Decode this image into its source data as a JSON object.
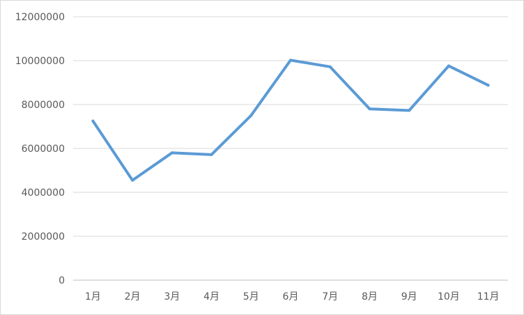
{
  "chart_data": {
    "type": "line",
    "title": "",
    "xlabel": "",
    "ylabel": "",
    "categories": [
      "1月",
      "2月",
      "3月",
      "4月",
      "5月",
      "6月",
      "7月",
      "8月",
      "9月",
      "10月",
      "11月"
    ],
    "series": [
      {
        "values": [
          7250000,
          4550000,
          5800000,
          5720000,
          7500000,
          10020000,
          9720000,
          7800000,
          7730000,
          9760000,
          8880000
        ],
        "color": "#5b9bd5"
      }
    ],
    "ylim": [
      0,
      12000000
    ],
    "yticks": [
      "0",
      "2000000",
      "4000000",
      "6000000",
      "8000000",
      "10000000",
      "12000000"
    ],
    "grid": true,
    "legend": "none"
  }
}
